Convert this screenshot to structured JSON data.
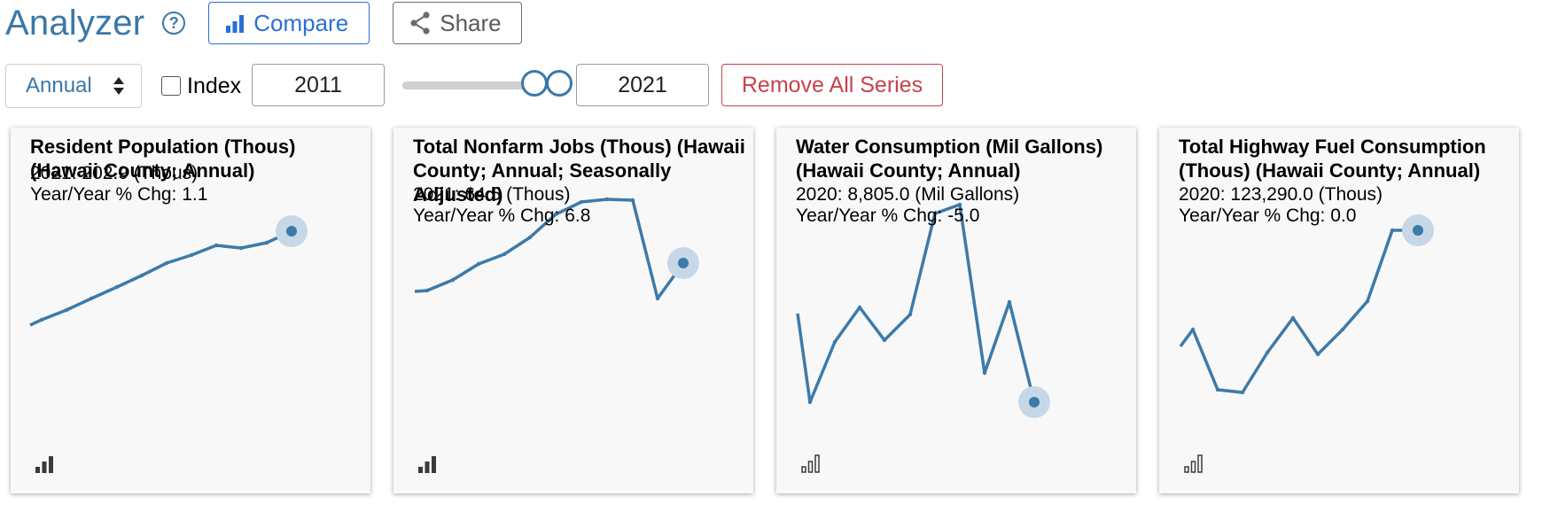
{
  "header": {
    "title": "Analyzer",
    "help_glyph": "?",
    "compare_label": "Compare",
    "share_label": "Share"
  },
  "controls": {
    "frequency": "Annual",
    "index_label": "Index",
    "index_checked": false,
    "start_year": "2011",
    "end_year": "2021",
    "remove_label": "Remove All Series"
  },
  "colors": {
    "accent": "#3a78a8",
    "compare": "#2a6fd6",
    "remove": "#c8424c",
    "line": "#3d7aa9",
    "halo": "#c6d8e8"
  },
  "cards": [
    {
      "title": "Resident Population (Thous) (Hawaii County; Annual)",
      "latest": "2021: 202.9 (Thous)",
      "change": "Year/Year % Chg: 1.1",
      "icon": "bar-chart-filled-icon"
    },
    {
      "title": "Total Nonfarm Jobs (Thous) (Hawaii County; Annual; Seasonally Adjusted)",
      "latest": "2021: 64.5 (Thous)",
      "change": "Year/Year % Chg: 6.8",
      "icon": "bar-chart-filled-icon"
    },
    {
      "title": "Water Consumption (Mil Gallons) (Hawaii County; Annual)",
      "latest": "2020: 8,805.0 (Mil Gallons)",
      "change": "Year/Year % Chg: -5.0",
      "icon": "bar-chart-outline-icon"
    },
    {
      "title": "Total Highway Fuel Consumption (Thous) (Hawaii County; Annual)",
      "latest": "2020: 123,290.0 (Thous)",
      "change": "Year/Year % Chg: 0.0",
      "icon": "bar-chart-outline-icon"
    }
  ]
}
